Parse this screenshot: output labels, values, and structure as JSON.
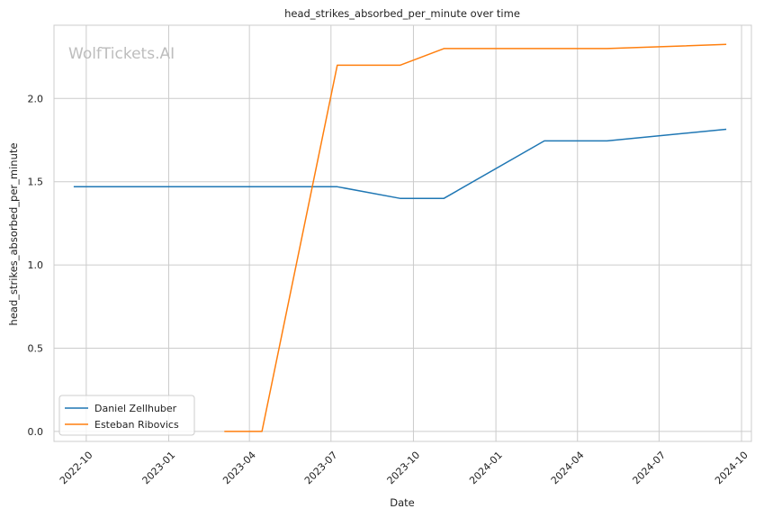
{
  "chart_data": {
    "type": "line",
    "title": "head_strikes_absorbed_per_minute over time",
    "xlabel": "Date",
    "ylabel": "head_strikes_absorbed_per_minute",
    "watermark": "WolfTickets.AI",
    "x_ticks": [
      "2022-10",
      "2023-01",
      "2023-04",
      "2023-07",
      "2023-10",
      "2024-01",
      "2024-04",
      "2024-07",
      "2024-10"
    ],
    "y_ticks": [
      "0.0",
      "0.5",
      "1.0",
      "1.5",
      "2.0"
    ],
    "xlim": [
      "2022-08-26",
      "2024-10-12"
    ],
    "ylim": [
      -0.06,
      2.44
    ],
    "grid": true,
    "legend_position": "lower-left",
    "series": [
      {
        "name": "Daniel Zellhuber",
        "color": "#1f77b4",
        "points": [
          {
            "x": "2022-09-17",
            "y": 1.47
          },
          {
            "x": "2023-07-08",
            "y": 1.47
          },
          {
            "x": "2023-09-16",
            "y": 1.4
          },
          {
            "x": "2023-11-04",
            "y": 1.4
          },
          {
            "x": "2024-02-24",
            "y": 1.745
          },
          {
            "x": "2024-05-04",
            "y": 1.745
          },
          {
            "x": "2024-09-14",
            "y": 1.815
          }
        ]
      },
      {
        "name": "Esteban Ribovics",
        "color": "#ff7f0e",
        "points": [
          {
            "x": "2023-03-04",
            "y": 0.0
          },
          {
            "x": "2023-04-15",
            "y": 0.0
          },
          {
            "x": "2023-07-08",
            "y": 2.2
          },
          {
            "x": "2023-09-16",
            "y": 2.2
          },
          {
            "x": "2023-11-04",
            "y": 2.3
          },
          {
            "x": "2024-05-04",
            "y": 2.3
          },
          {
            "x": "2024-09-14",
            "y": 2.325
          }
        ]
      }
    ]
  }
}
